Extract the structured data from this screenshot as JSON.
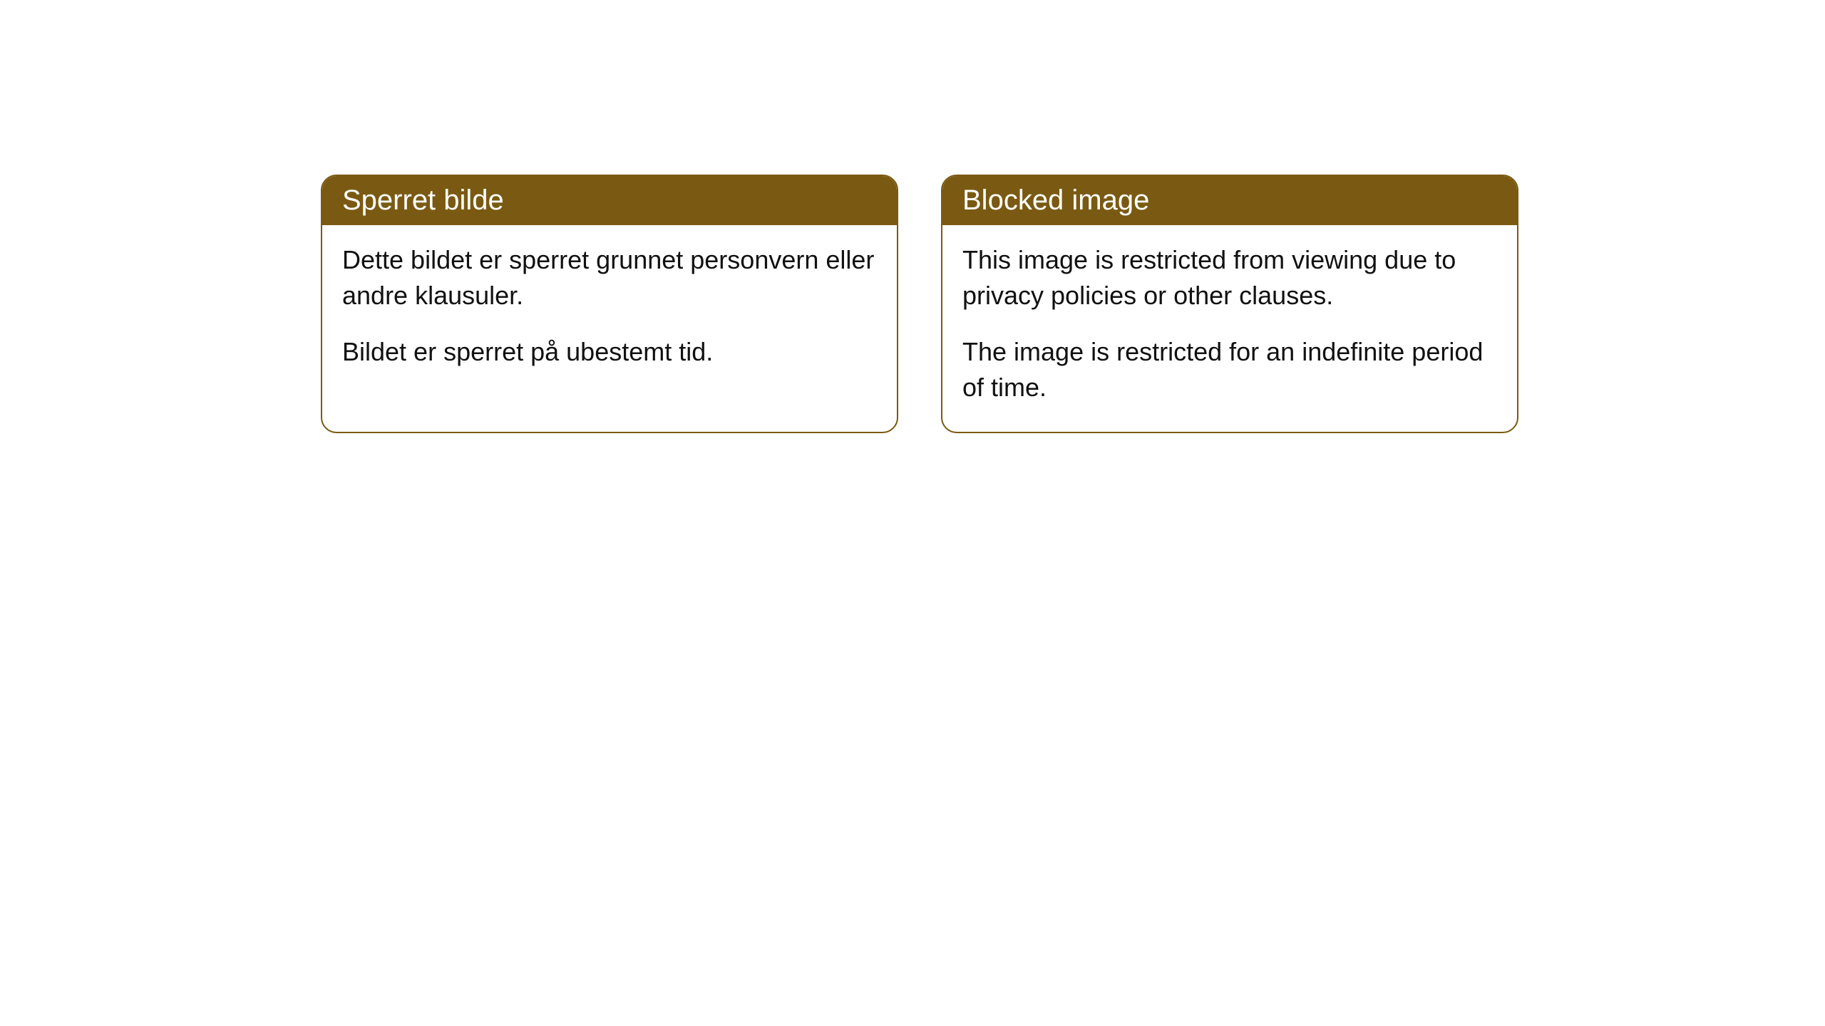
{
  "cards": [
    {
      "title": "Sperret bilde",
      "paragraph1": "Dette bildet er sperret grunnet personvern eller andre klausuler.",
      "paragraph2": "Bildet er sperret på ubestemt tid."
    },
    {
      "title": "Blocked image",
      "paragraph1": "This image is restricted from viewing due to privacy policies or other clauses.",
      "paragraph2": "The image is restricted for an indefinite period of time."
    }
  ],
  "styling": {
    "header_background": "#7a5a12",
    "header_text_color": "#ffffff",
    "border_color": "#7a5a12",
    "body_text_color": "#111111",
    "card_background": "#ffffff",
    "page_background": "#ffffff",
    "border_radius": 22,
    "header_fontsize": 40,
    "body_fontsize": 36
  }
}
